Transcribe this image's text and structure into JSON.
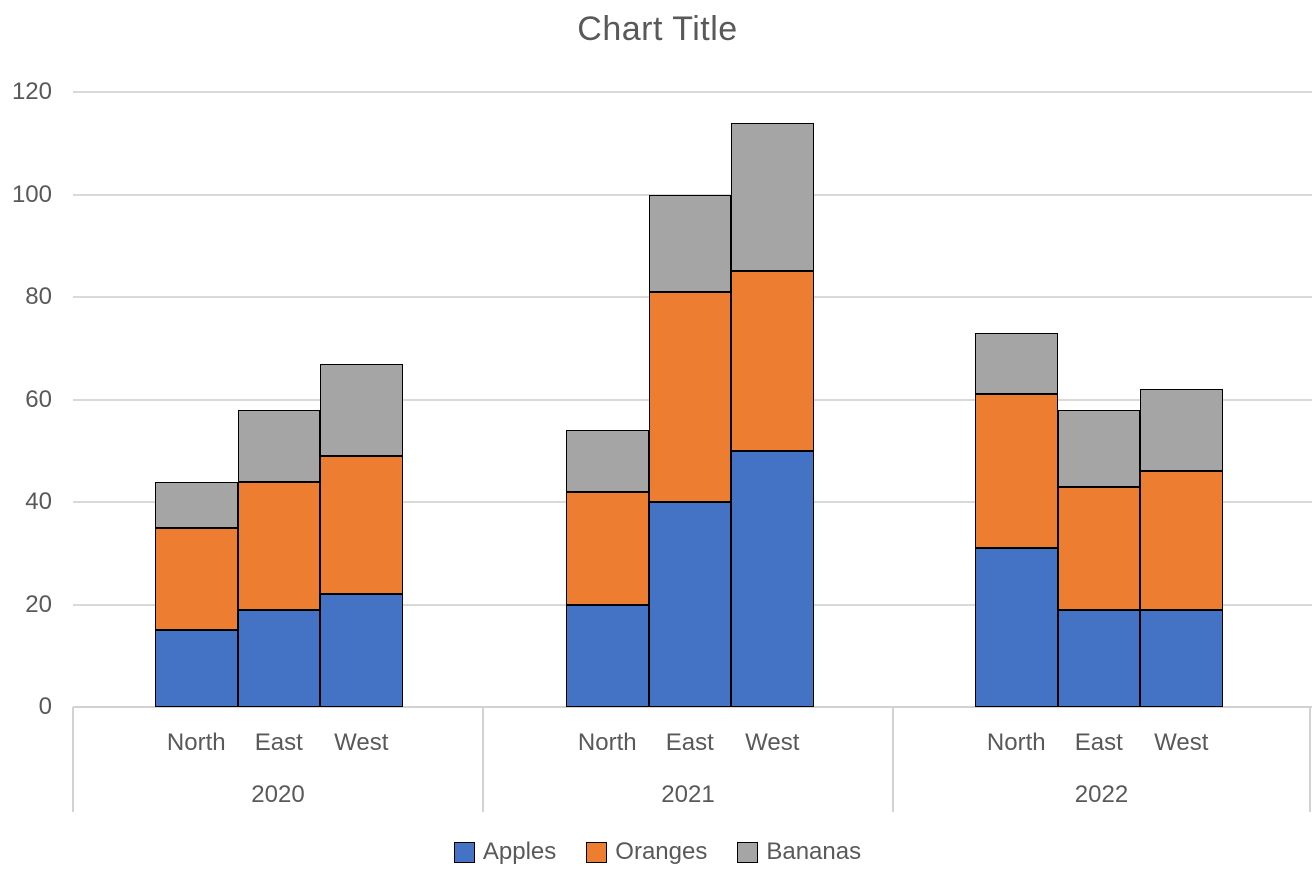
{
  "title": "Chart Title",
  "chart_data": {
    "type": "bar",
    "stacked": true,
    "title": "Chart Title",
    "groups": [
      {
        "label": "2020",
        "categories": [
          "North",
          "East",
          "West"
        ]
      },
      {
        "label": "2021",
        "categories": [
          "North",
          "East",
          "West"
        ]
      },
      {
        "label": "2022",
        "categories": [
          "North",
          "East",
          "West"
        ]
      }
    ],
    "series": [
      {
        "name": "Apples",
        "color": "#4472C4",
        "values": [
          15,
          19,
          22,
          20,
          40,
          50,
          31,
          19,
          19
        ]
      },
      {
        "name": "Oranges",
        "color": "#ED7D31",
        "values": [
          20,
          25,
          27,
          22,
          41,
          35,
          30,
          24,
          27
        ]
      },
      {
        "name": "Bananas",
        "color": "#A5A5A5",
        "values": [
          9,
          14,
          18,
          12,
          19,
          29,
          12,
          15,
          16
        ]
      }
    ],
    "totals": [
      44,
      58,
      67,
      54,
      100,
      114,
      73,
      58,
      62
    ],
    "ylim": [
      0,
      120
    ],
    "yticks": [
      0,
      20,
      40,
      60,
      80,
      100,
      120
    ],
    "grid": true,
    "legend_position": "bottom",
    "style": {
      "text_color": "#595959",
      "gridline_color": "#D9D9D9",
      "axis_line_color": "#D2D2D2",
      "bar_border_color": "#000000",
      "background": "#FFFFFF"
    }
  }
}
